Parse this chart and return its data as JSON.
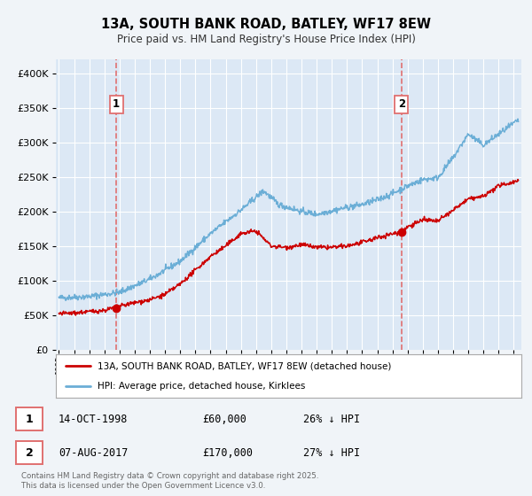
{
  "title": "13A, SOUTH BANK ROAD, BATLEY, WF17 8EW",
  "subtitle": "Price paid vs. HM Land Registry's House Price Index (HPI)",
  "background_color": "#f0f4f8",
  "plot_bg_color": "#dce8f5",
  "grid_color": "#ffffff",
  "ylim": [
    0,
    420000
  ],
  "yticks": [
    0,
    50000,
    100000,
    150000,
    200000,
    250000,
    300000,
    350000,
    400000
  ],
  "ytick_labels": [
    "£0",
    "£50K",
    "£100K",
    "£150K",
    "£200K",
    "£250K",
    "£300K",
    "£350K",
    "£400K"
  ],
  "xlim_start": 1994.8,
  "xlim_end": 2025.5,
  "sale1_date": 1998.79,
  "sale1_price": 60000,
  "sale1_label": "1",
  "sale1_date_str": "14-OCT-1998",
  "sale1_price_str": "£60,000",
  "sale1_hpi_str": "26% ↓ HPI",
  "sale2_date": 2017.59,
  "sale2_price": 170000,
  "sale2_label": "2",
  "sale2_date_str": "07-AUG-2017",
  "sale2_price_str": "£170,000",
  "sale2_hpi_str": "27% ↓ HPI",
  "hpi_color": "#6baed6",
  "price_color": "#cc0000",
  "vline_color": "#e07070",
  "legend_label_price": "13A, SOUTH BANK ROAD, BATLEY, WF17 8EW (detached house)",
  "legend_label_hpi": "HPI: Average price, detached house, Kirklees",
  "footnote": "Contains HM Land Registry data © Crown copyright and database right 2025.\nThis data is licensed under the Open Government Licence v3.0.",
  "hpi_xp": [
    1995,
    1997,
    1999,
    2001,
    2003,
    2005,
    2007,
    2008.5,
    2009.5,
    2011,
    2012,
    2013,
    2014,
    2015,
    2016,
    2017,
    2018,
    2019,
    2020,
    2021,
    2022,
    2023,
    2024,
    2025.3
  ],
  "hpi_yp": [
    75000,
    77000,
    83000,
    102000,
    128000,
    168000,
    202000,
    230000,
    210000,
    200000,
    196000,
    201000,
    206000,
    210000,
    217000,
    226000,
    237000,
    246000,
    249000,
    278000,
    312000,
    296000,
    312000,
    332000
  ],
  "price_xp": [
    1995,
    1996,
    1997,
    1998,
    1999,
    2000,
    2001,
    2002,
    2003,
    2004,
    2005,
    2006,
    2007,
    2008,
    2009,
    2010,
    2011,
    2012,
    2013,
    2014,
    2015,
    2016,
    2017,
    2017.6,
    2018,
    2019,
    2020,
    2021,
    2022,
    2023,
    2024,
    2025.3
  ],
  "price_yp": [
    52000,
    53000,
    55000,
    57000,
    63000,
    68000,
    72000,
    80000,
    95000,
    115000,
    135000,
    150000,
    168000,
    172000,
    150000,
    148000,
    152000,
    148000,
    148000,
    150000,
    155000,
    162000,
    168000,
    170000,
    178000,
    188000,
    186000,
    202000,
    218000,
    222000,
    237000,
    245000
  ]
}
